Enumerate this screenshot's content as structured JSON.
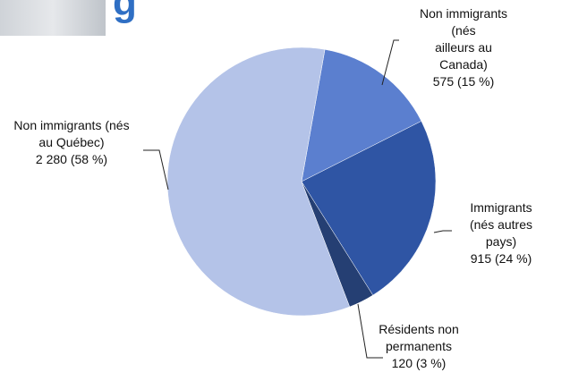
{
  "header": {
    "text": "g"
  },
  "chart_data": {
    "type": "pie",
    "categories": [
      "Non immigrants (nés\nailleurs au Canada)",
      "Immigrants\n(nés autres pays)",
      "Résidents non\npermanents",
      "Non immigrants (nés\nau Québec)"
    ],
    "values": [
      575,
      915,
      120,
      2280
    ],
    "value_labels": [
      "575 (15 %)",
      "915 (24 %)",
      "120 (3 %)",
      "2 280 (58 %)"
    ],
    "colors": [
      "#5b7fcf",
      "#2f55a4",
      "#253f73",
      "#b4c3e8"
    ]
  }
}
